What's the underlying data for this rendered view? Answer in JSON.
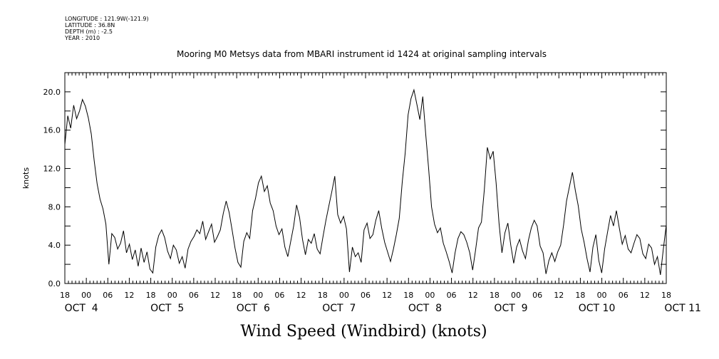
{
  "header": {
    "longitude": "LONGITUDE : 121.9W(-121.9)",
    "latitude": "LATITUDE : 36.8N",
    "depth": "DEPTH (m) : -2.5",
    "year": "YEAR : 2010"
  },
  "chart_data": {
    "type": "line",
    "title": "Mooring M0 Metsys data from MBARI instrument id 1424 at original sampling intervals",
    "xlabel": "Wind Speed (Windbird) (knots)",
    "ylabel": "knots",
    "xlim_hours": [
      0,
      168
    ],
    "ylim": [
      0,
      22
    ],
    "yticks": [
      "0.0",
      "4.0",
      "8.0",
      "12.0",
      "16.0",
      "20.0"
    ],
    "hour_tick_labels": [
      "18",
      "00",
      "06",
      "12",
      "18",
      "00",
      "06",
      "12",
      "18",
      "00",
      "06",
      "12",
      "18",
      "00",
      "06",
      "12",
      "18",
      "00",
      "06",
      "12",
      "18",
      "00",
      "06",
      "12",
      "18",
      "00",
      "06",
      "12",
      "18"
    ],
    "date_labels": [
      "OCT  4",
      "OCT  5",
      "OCT  6",
      "OCT  7",
      "OCT  8",
      "OCT  9",
      "OCT 10",
      "OCT 11"
    ],
    "grid": false,
    "series": [
      {
        "color": "#000000",
        "points": [
          [
            0,
            14.5
          ],
          [
            1,
            17.5
          ],
          [
            2,
            16.2
          ],
          [
            3,
            18.6
          ],
          [
            4,
            17.2
          ],
          [
            5,
            18.0
          ],
          [
            6,
            19.2
          ],
          [
            7,
            18.5
          ],
          [
            8,
            17.3
          ],
          [
            9,
            15.6
          ],
          [
            10,
            12.8
          ],
          [
            11,
            10.4
          ],
          [
            12,
            8.8
          ],
          [
            13,
            7.8
          ],
          [
            14,
            6.2
          ],
          [
            15,
            2.0
          ],
          [
            16,
            5.2
          ],
          [
            17,
            4.8
          ],
          [
            18,
            3.6
          ],
          [
            19,
            4.2
          ],
          [
            20,
            5.5
          ],
          [
            21,
            3.2
          ],
          [
            22,
            4.1
          ],
          [
            23,
            2.5
          ],
          [
            24,
            3.5
          ],
          [
            25,
            1.8
          ],
          [
            26,
            3.7
          ],
          [
            27,
            2.2
          ],
          [
            28,
            3.3
          ],
          [
            29,
            1.5
          ],
          [
            30,
            1.1
          ],
          [
            31,
            3.8
          ],
          [
            32,
            5.0
          ],
          [
            33,
            5.6
          ],
          [
            34,
            4.8
          ],
          [
            35,
            3.4
          ],
          [
            36,
            2.6
          ],
          [
            37,
            4.0
          ],
          [
            38,
            3.5
          ],
          [
            39,
            2.1
          ],
          [
            40,
            2.8
          ],
          [
            41,
            1.6
          ],
          [
            42,
            3.6
          ],
          [
            43,
            4.4
          ],
          [
            44,
            4.9
          ],
          [
            45,
            5.6
          ],
          [
            46,
            5.2
          ],
          [
            47,
            6.5
          ],
          [
            48,
            4.6
          ],
          [
            49,
            5.4
          ],
          [
            50,
            6.2
          ],
          [
            51,
            4.3
          ],
          [
            52,
            4.9
          ],
          [
            53,
            5.6
          ],
          [
            54,
            7.3
          ],
          [
            55,
            8.6
          ],
          [
            56,
            7.4
          ],
          [
            57,
            5.6
          ],
          [
            58,
            3.7
          ],
          [
            59,
            2.2
          ],
          [
            60,
            1.7
          ],
          [
            61,
            4.4
          ],
          [
            62,
            5.3
          ],
          [
            63,
            4.7
          ],
          [
            64,
            7.6
          ],
          [
            65,
            8.9
          ],
          [
            66,
            10.5
          ],
          [
            67,
            11.2
          ],
          [
            68,
            9.6
          ],
          [
            69,
            10.2
          ],
          [
            70,
            8.4
          ],
          [
            71,
            7.6
          ],
          [
            72,
            6.0
          ],
          [
            73,
            5.1
          ],
          [
            74,
            5.7
          ],
          [
            75,
            3.8
          ],
          [
            76,
            2.8
          ],
          [
            77,
            4.4
          ],
          [
            78,
            6.0
          ],
          [
            79,
            8.2
          ],
          [
            80,
            6.9
          ],
          [
            81,
            4.6
          ],
          [
            82,
            3.0
          ],
          [
            83,
            4.6
          ],
          [
            84,
            4.2
          ],
          [
            85,
            5.2
          ],
          [
            86,
            3.6
          ],
          [
            87,
            3.1
          ],
          [
            88,
            4.9
          ],
          [
            89,
            6.6
          ],
          [
            90,
            8.1
          ],
          [
            91,
            9.6
          ],
          [
            92,
            11.2
          ],
          [
            93,
            7.2
          ],
          [
            94,
            6.3
          ],
          [
            95,
            7.0
          ],
          [
            96,
            5.7
          ],
          [
            97,
            1.2
          ],
          [
            98,
            3.8
          ],
          [
            99,
            2.8
          ],
          [
            100,
            3.2
          ],
          [
            101,
            2.2
          ],
          [
            102,
            5.6
          ],
          [
            103,
            6.3
          ],
          [
            104,
            4.7
          ],
          [
            105,
            5.1
          ],
          [
            106,
            6.6
          ],
          [
            107,
            7.6
          ],
          [
            108,
            5.8
          ],
          [
            109,
            4.3
          ],
          [
            110,
            3.3
          ],
          [
            111,
            2.3
          ],
          [
            112,
            3.6
          ],
          [
            113,
            5.1
          ],
          [
            114,
            6.8
          ],
          [
            115,
            10.6
          ],
          [
            116,
            13.6
          ],
          [
            117,
            17.6
          ],
          [
            118,
            19.3
          ],
          [
            119,
            20.2
          ],
          [
            120,
            18.7
          ],
          [
            121,
            17.1
          ],
          [
            122,
            19.5
          ],
          [
            123,
            15.6
          ],
          [
            124,
            12.0
          ],
          [
            125,
            8.0
          ],
          [
            126,
            6.2
          ],
          [
            127,
            5.3
          ],
          [
            128,
            5.8
          ],
          [
            129,
            4.2
          ],
          [
            130,
            3.3
          ],
          [
            131,
            2.3
          ],
          [
            132,
            1.1
          ],
          [
            133,
            3.2
          ],
          [
            134,
            4.7
          ],
          [
            135,
            5.4
          ],
          [
            136,
            5.1
          ],
          [
            137,
            4.3
          ],
          [
            138,
            3.2
          ],
          [
            139,
            1.4
          ],
          [
            140,
            3.5
          ],
          [
            141,
            5.8
          ],
          [
            142,
            6.4
          ],
          [
            143,
            9.8
          ],
          [
            144,
            14.2
          ],
          [
            145,
            13.0
          ],
          [
            146,
            13.8
          ],
          [
            147,
            10.5
          ],
          [
            148,
            6.3
          ],
          [
            149,
            3.2
          ],
          [
            150,
            5.3
          ],
          [
            151,
            6.3
          ],
          [
            152,
            4.0
          ],
          [
            153,
            2.1
          ],
          [
            154,
            3.8
          ],
          [
            155,
            4.6
          ],
          [
            156,
            3.4
          ],
          [
            157,
            2.6
          ],
          [
            158,
            4.5
          ],
          [
            159,
            5.8
          ],
          [
            160,
            6.6
          ],
          [
            161,
            6.0
          ],
          [
            162,
            3.9
          ],
          [
            163,
            3.2
          ],
          [
            164,
            1.0
          ],
          [
            165,
            2.4
          ],
          [
            166,
            3.2
          ],
          [
            167,
            2.3
          ],
          [
            168,
            3.3
          ],
          [
            169,
            4.0
          ],
          [
            170,
            6.1
          ],
          [
            171,
            8.6
          ],
          [
            172,
            10.1
          ],
          [
            173,
            11.6
          ],
          [
            174,
            9.7
          ],
          [
            175,
            8.1
          ],
          [
            176,
            5.7
          ],
          [
            177,
            4.3
          ],
          [
            178,
            2.6
          ],
          [
            179,
            1.2
          ],
          [
            180,
            3.8
          ],
          [
            181,
            5.1
          ],
          [
            182,
            2.4
          ],
          [
            183,
            1.1
          ],
          [
            184,
            3.6
          ],
          [
            185,
            5.4
          ],
          [
            186,
            7.1
          ],
          [
            187,
            6.0
          ],
          [
            188,
            7.6
          ],
          [
            189,
            5.8
          ],
          [
            190,
            4.1
          ],
          [
            191,
            5.0
          ],
          [
            192,
            3.6
          ],
          [
            193,
            3.2
          ],
          [
            194,
            4.2
          ],
          [
            195,
            5.1
          ],
          [
            196,
            4.7
          ],
          [
            197,
            3.1
          ],
          [
            198,
            2.6
          ],
          [
            199,
            4.1
          ],
          [
            200,
            3.7
          ],
          [
            201,
            2.0
          ],
          [
            202,
            2.8
          ],
          [
            203,
            0.9
          ],
          [
            204,
            3.6
          ],
          [
            205,
            6.1
          ]
        ]
      }
    ]
  }
}
